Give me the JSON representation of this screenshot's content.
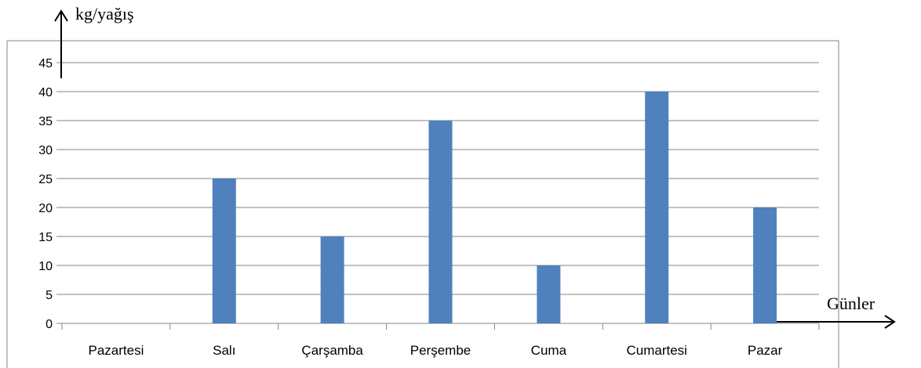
{
  "chart_data": {
    "type": "bar",
    "categories": [
      "Pazartesi",
      "Salı",
      "Çarşamba",
      "Perşembe",
      "Cuma",
      "Cumartesi",
      "Pazar"
    ],
    "values": [
      0,
      25,
      15,
      35,
      10,
      40,
      20
    ],
    "ylabel": "kg/yağış",
    "xlabel": "Günler",
    "ylim": [
      0,
      45
    ],
    "yticks": [
      0,
      5,
      10,
      15,
      20,
      25,
      30,
      35,
      40,
      45
    ],
    "grid": true,
    "bar_color": "#4F81BD",
    "grid_color": "#868686"
  }
}
